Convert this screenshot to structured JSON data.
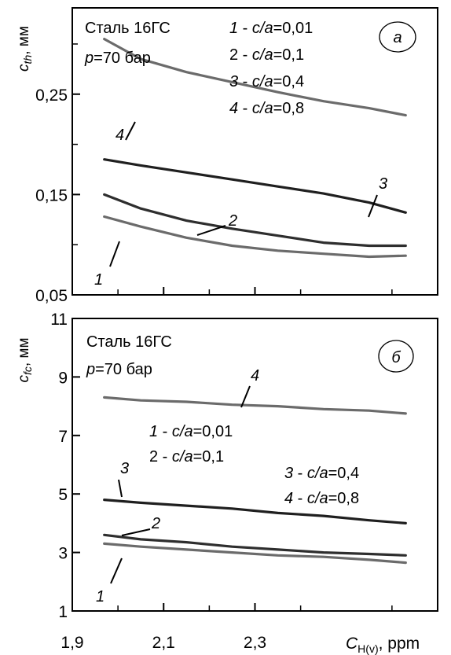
{
  "chart_data": [
    {
      "id": "a",
      "type": "line",
      "panel_label": "а",
      "ylabel_var": "c",
      "ylabel_sub": "th",
      "ylabel_unit": ", мм",
      "ylim": [
        0.05,
        0.25
      ],
      "yticks": [
        {
          "value": 0.05,
          "label": "0,05"
        },
        {
          "value": 0.15,
          "label": "0,15"
        },
        {
          "value": 0.25,
          "label": "0,25"
        }
      ],
      "ytick_minor": [
        0.1,
        0.2,
        0.3
      ],
      "ymax": 0.35,
      "material": "Сталь 16ГС",
      "pressure_var": "p",
      "pressure_text": "=70 бар",
      "legend": [
        {
          "num": "1",
          "num_italic": true,
          "text": " - ",
          "var": "c/a",
          "val": "=0,01"
        },
        {
          "num": "2",
          "num_italic": false,
          "text": " - ",
          "var": "c/a",
          "val": "=0,1"
        },
        {
          "num": "3",
          "num_italic": true,
          "text": " - ",
          "var": "c/a",
          "val": "=0,4"
        },
        {
          "num": "4",
          "num_italic": true,
          "text": " - ",
          "var": "c/a",
          "val": "=0,8"
        }
      ],
      "series": [
        {
          "label": "1",
          "color": "#6b6b6b",
          "x": [
            1.97,
            2.05,
            2.15,
            2.25,
            2.35,
            2.45,
            2.55,
            2.63
          ],
          "y": [
            0.128,
            0.118,
            0.107,
            0.099,
            0.094,
            0.091,
            0.088,
            0.089
          ]
        },
        {
          "label": "2",
          "color": "#2e2e2e",
          "x": [
            1.97,
            2.05,
            2.15,
            2.25,
            2.35,
            2.45,
            2.55,
            2.63
          ],
          "y": [
            0.15,
            0.136,
            0.124,
            0.116,
            0.109,
            0.102,
            0.099,
            0.099
          ]
        },
        {
          "label": "3",
          "color": "#1f1f1f",
          "x": [
            1.97,
            2.05,
            2.15,
            2.25,
            2.35,
            2.45,
            2.55,
            2.63
          ],
          "y": [
            0.185,
            0.179,
            0.172,
            0.165,
            0.158,
            0.151,
            0.142,
            0.132
          ]
        },
        {
          "label": "4",
          "color": "#6b6b6b",
          "x": [
            1.97,
            2.05,
            2.15,
            2.25,
            2.35,
            2.45,
            2.55,
            2.63
          ],
          "y": [
            0.305,
            0.285,
            0.272,
            0.262,
            0.252,
            0.243,
            0.236,
            0.229
          ]
        }
      ]
    },
    {
      "id": "b",
      "type": "line",
      "panel_label": "б",
      "ylabel_var": "c",
      "ylabel_sub": "fc",
      "ylabel_unit": ", мм",
      "ylim": [
        1,
        11
      ],
      "yticks": [
        {
          "value": 1,
          "label": "1"
        },
        {
          "value": 3,
          "label": "3"
        },
        {
          "value": 5,
          "label": "5"
        },
        {
          "value": 7,
          "label": "7"
        },
        {
          "value": 9,
          "label": "9"
        },
        {
          "value": 11,
          "label": "11"
        }
      ],
      "material": "Сталь 16ГС",
      "pressure_var": "p",
      "pressure_text": "=70 бар",
      "legend": [
        {
          "num": "1",
          "num_italic": true,
          "text": " - ",
          "var": "c/a",
          "val": "=0,01"
        },
        {
          "num": "2",
          "num_italic": false,
          "text": " - ",
          "var": "c/a",
          "val": "=0,1"
        },
        {
          "num": "3",
          "num_italic": true,
          "text": " - ",
          "var": "c/a",
          "val": "=0,4"
        },
        {
          "num": "4",
          "num_italic": true,
          "text": " - ",
          "var": "c/a",
          "val": "=0,8"
        }
      ],
      "series": [
        {
          "label": "1",
          "color": "#6b6b6b",
          "x": [
            1.97,
            2.05,
            2.15,
            2.25,
            2.35,
            2.45,
            2.55,
            2.63
          ],
          "y": [
            3.3,
            3.2,
            3.1,
            3.0,
            2.9,
            2.85,
            2.75,
            2.65
          ]
        },
        {
          "label": "2",
          "color": "#2e2e2e",
          "x": [
            1.97,
            2.05,
            2.15,
            2.25,
            2.35,
            2.45,
            2.55,
            2.63
          ],
          "y": [
            3.6,
            3.45,
            3.35,
            3.2,
            3.1,
            3.0,
            2.95,
            2.9
          ]
        },
        {
          "label": "3",
          "color": "#1f1f1f",
          "x": [
            1.97,
            2.05,
            2.15,
            2.25,
            2.35,
            2.45,
            2.55,
            2.63
          ],
          "y": [
            4.8,
            4.7,
            4.6,
            4.5,
            4.35,
            4.25,
            4.1,
            4.0
          ]
        },
        {
          "label": "4",
          "color": "#6b6b6b",
          "x": [
            1.97,
            2.05,
            2.15,
            2.25,
            2.35,
            2.45,
            2.55,
            2.63
          ],
          "y": [
            8.3,
            8.2,
            8.15,
            8.05,
            8.0,
            7.9,
            7.85,
            7.75
          ]
        }
      ]
    }
  ],
  "xaxis": {
    "xlim": [
      1.9,
      2.7
    ],
    "ticks": [
      {
        "value": 1.9,
        "label": "1,9"
      },
      {
        "value": 2.1,
        "label": "2,1"
      },
      {
        "value": 2.3,
        "label": "2,3"
      }
    ],
    "minor": [
      2.0,
      2.2,
      2.4,
      2.6
    ],
    "title_var": "C",
    "title_sub": "H(v)",
    "title_unit": ",  ppm"
  }
}
